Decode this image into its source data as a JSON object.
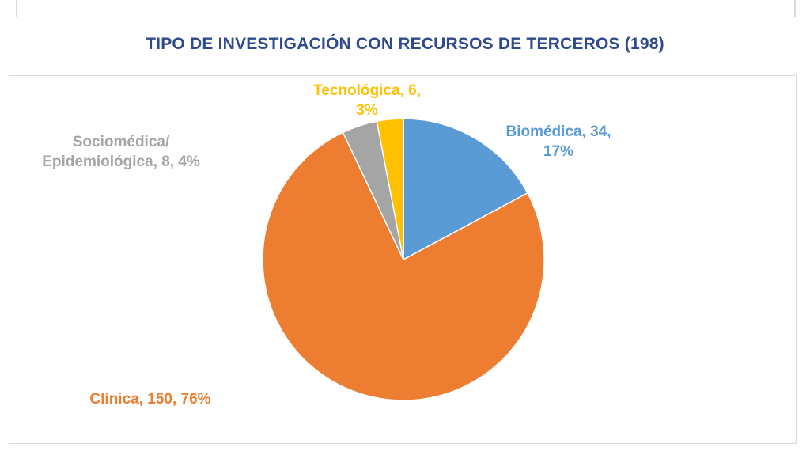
{
  "chart_data": {
    "type": "pie",
    "title": "TIPO DE INVESTIGACIÓN CON RECURSOS DE TERCEROS (198)",
    "slices": [
      {
        "label": "Biomédica",
        "value": 34,
        "percent": 17,
        "color": "#5b9bd5",
        "label_lines": [
          "Biomédica, 34,",
          "17%"
        ]
      },
      {
        "label": "Clínica",
        "value": 150,
        "percent": 76,
        "color": "#ed7d31",
        "label_lines": [
          "Clínica, 150, 76%"
        ]
      },
      {
        "label": "Sociomédica/ Epidemiológica",
        "value": 8,
        "percent": 4,
        "color": "#a5a5a5",
        "label_lines": [
          "Sociomédica/",
          "Epidemiológica, 8, 4%"
        ]
      },
      {
        "label": "Tecnológica",
        "value": 6,
        "percent": 3,
        "color": "#ffc000",
        "label_lines": [
          "Tecnológica, 6,",
          "3%"
        ]
      }
    ],
    "legend": "none"
  }
}
